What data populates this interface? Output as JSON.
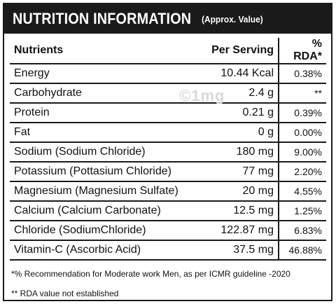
{
  "header": {
    "title": "NUTRITION INFORMATION",
    "subtitle": "(Approx. Value)"
  },
  "columns": [
    "Nutrients",
    "Per Serving",
    "% RDA*"
  ],
  "rows": [
    {
      "nutrient": "Energy",
      "serving": "10.44 Kcal",
      "rda": "0.38%"
    },
    {
      "nutrient": "Carbohydrate",
      "serving": "2.4 g",
      "rda": "**"
    },
    {
      "nutrient": "Protein",
      "serving": "0.21 g",
      "rda": "0.39%"
    },
    {
      "nutrient": "Fat",
      "serving": "0 g",
      "rda": "0.00%"
    },
    {
      "nutrient": "Sodium (Sodium Chloride)",
      "serving": "180 mg",
      "rda": "9.00%"
    },
    {
      "nutrient": "Potassium (Pottasium Chloride)",
      "serving": "77 mg",
      "rda": "2.20%"
    },
    {
      "nutrient": "Magnesium (Magnesium Sulfate)",
      "serving": "20 mg",
      "rda": "4.55%"
    },
    {
      "nutrient": "Calcium (Calcium Carbonate)",
      "serving": "12.5 mg",
      "rda": "1.25%"
    },
    {
      "nutrient": "Chloride (SodiumChloride)",
      "serving": "122.87 mg",
      "rda": "6.83%"
    },
    {
      "nutrient": "Vitamin-C (Ascorbic Acid)",
      "serving": "37.5 mg",
      "rda": "46.88%"
    }
  ],
  "notes": {
    "recommendation": "*% Recommendation for Moderate work Men, as per ICMR guideline -2020",
    "rda_na": "** RDA value not established"
  },
  "watermark": "©1mg"
}
